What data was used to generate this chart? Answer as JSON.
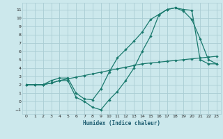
{
  "xlabel": "Humidex (Indice chaleur)",
  "bg_color": "#cce8ec",
  "grid_color": "#aacdd4",
  "line_color": "#1a7a6e",
  "xlim": [
    -0.5,
    23.5
  ],
  "ylim": [
    -1.5,
    11.8
  ],
  "xticks": [
    0,
    1,
    2,
    3,
    4,
    5,
    6,
    7,
    8,
    9,
    10,
    11,
    12,
    13,
    14,
    15,
    16,
    17,
    18,
    19,
    20,
    21,
    22,
    23
  ],
  "yticks": [
    -1,
    0,
    1,
    2,
    3,
    4,
    5,
    6,
    7,
    8,
    9,
    10,
    11
  ],
  "line1_x": [
    0,
    1,
    2,
    3,
    4,
    5,
    6,
    7,
    8,
    9,
    10,
    11,
    12,
    13,
    14,
    15,
    16,
    17,
    18,
    19,
    20,
    21,
    22,
    23
  ],
  "line1_y": [
    2.0,
    2.0,
    2.0,
    2.2,
    2.5,
    2.7,
    2.9,
    3.1,
    3.3,
    3.5,
    3.7,
    3.9,
    4.1,
    4.3,
    4.5,
    4.6,
    4.7,
    4.8,
    4.9,
    5.0,
    5.1,
    5.2,
    5.3,
    5.4
  ],
  "line2_x": [
    0,
    1,
    2,
    3,
    4,
    5,
    6,
    7,
    8,
    9,
    10,
    11,
    12,
    13,
    14,
    15,
    16,
    17,
    18,
    19,
    20,
    21,
    22,
    23
  ],
  "line2_y": [
    2.0,
    2.0,
    2.0,
    2.5,
    2.8,
    2.8,
    1.0,
    0.3,
    0.2,
    1.5,
    3.5,
    5.2,
    6.2,
    7.2,
    8.3,
    9.8,
    10.4,
    11.0,
    11.2,
    10.8,
    9.8,
    7.5,
    5.0,
    4.5
  ],
  "line3_x": [
    0,
    1,
    2,
    3,
    4,
    5,
    6,
    7,
    8,
    9,
    10,
    11,
    12,
    13,
    14,
    15,
    16,
    17,
    18,
    19,
    20,
    21,
    22,
    23
  ],
  "line3_y": [
    2.0,
    2.0,
    2.0,
    2.2,
    2.5,
    2.5,
    0.5,
    0.0,
    -0.7,
    -1.0,
    0.2,
    1.2,
    2.5,
    4.0,
    6.0,
    7.8,
    10.3,
    11.0,
    11.2,
    11.0,
    10.9,
    5.0,
    4.5,
    4.5
  ]
}
